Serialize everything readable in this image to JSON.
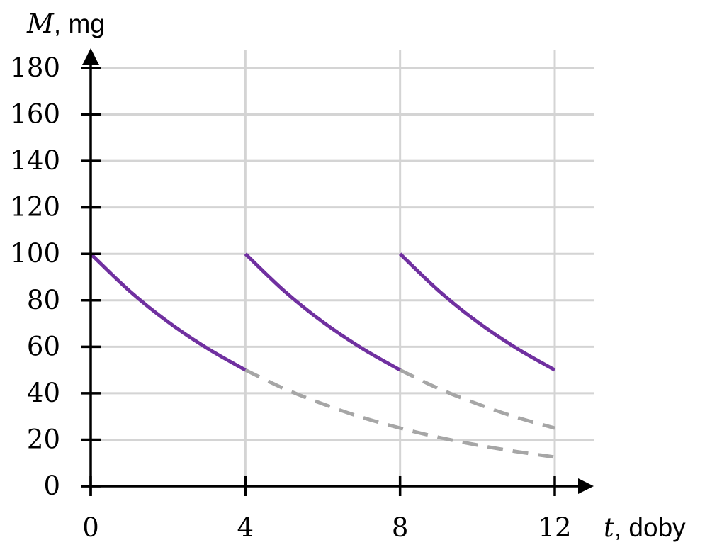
{
  "chart_data": {
    "type": "line",
    "xlabel": {
      "variable": "t",
      "unit": ", doby"
    },
    "ylabel": {
      "variable": "M",
      "unit": ", mg"
    },
    "xlim": [
      0,
      12
    ],
    "ylim": [
      0,
      180
    ],
    "x_ticks": [
      0,
      4,
      8,
      12
    ],
    "y_ticks": [
      0,
      20,
      40,
      60,
      80,
      100,
      120,
      140,
      160,
      180
    ],
    "x_gridlines": [
      4,
      8,
      12
    ],
    "y_gridlines": [
      20,
      40,
      60,
      80,
      100,
      120,
      140,
      160,
      180
    ],
    "grid": true,
    "colors": {
      "solid": "#7030a0",
      "dashed": "#a6a6a6",
      "grid": "#d4d4d4",
      "axis": "#000000"
    },
    "series": [
      {
        "style": "solid",
        "points": [
          [
            0,
            100
          ],
          [
            1,
            84.1
          ],
          [
            2,
            70.7
          ],
          [
            3,
            59.5
          ],
          [
            4,
            50
          ]
        ]
      },
      {
        "style": "solid",
        "points": [
          [
            4,
            100
          ],
          [
            5,
            84.1
          ],
          [
            6,
            70.7
          ],
          [
            7,
            59.5
          ],
          [
            8,
            50
          ]
        ]
      },
      {
        "style": "solid",
        "points": [
          [
            8,
            100
          ],
          [
            9,
            84.1
          ],
          [
            10,
            70.7
          ],
          [
            11,
            59.5
          ],
          [
            12,
            50
          ]
        ]
      },
      {
        "style": "dashed",
        "points": [
          [
            4,
            50
          ],
          [
            5,
            42
          ],
          [
            6,
            35.4
          ],
          [
            7,
            29.7
          ],
          [
            8,
            25
          ],
          [
            9,
            21
          ],
          [
            10,
            17.7
          ],
          [
            11,
            14.9
          ],
          [
            12,
            12.5
          ]
        ]
      },
      {
        "style": "dashed",
        "points": [
          [
            8,
            50
          ],
          [
            9,
            42
          ],
          [
            10,
            35.4
          ],
          [
            11,
            29.7
          ],
          [
            12,
            25
          ]
        ]
      }
    ]
  }
}
